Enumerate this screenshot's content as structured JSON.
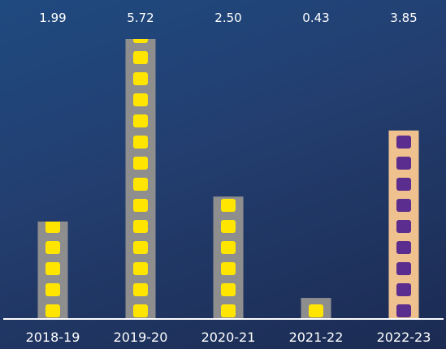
{
  "chart_data": {
    "type": "bar",
    "categories": [
      "2018-19",
      "2019-20",
      "2020-21",
      "2021-22",
      "2022-23"
    ],
    "values": [
      1.99,
      5.72,
      2.5,
      0.43,
      3.85
    ],
    "value_labels": [
      "1.99",
      "5.72",
      "2.50",
      "0.43",
      "3.85"
    ],
    "title": "",
    "xlabel": "",
    "ylabel": "",
    "ylim": [
      0,
      5.72
    ],
    "grid": false,
    "legend": "none"
  },
  "colors": {
    "background_top": "#1f4a80",
    "background_bottom": "#1b2b52",
    "bar_default": "#8e8e8e",
    "bar_highlight": "#efc18f",
    "dot_default": "#ffe500",
    "dot_highlight": "#5b2d8e",
    "baseline": "#ffffff",
    "text": "#ffffff"
  },
  "highlight_index": 4
}
